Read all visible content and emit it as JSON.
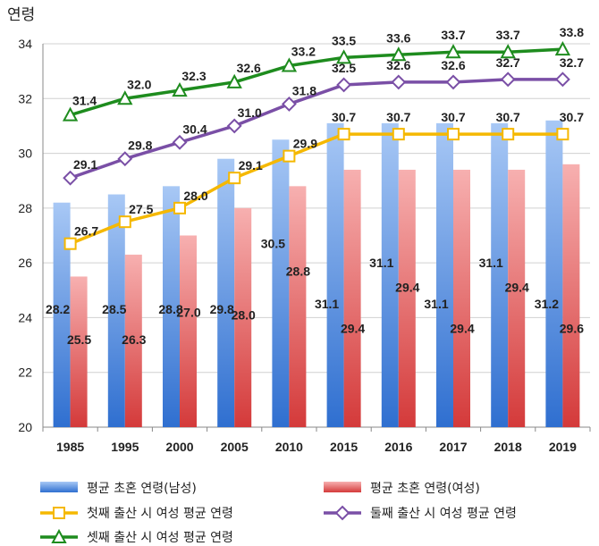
{
  "chart_data": {
    "type": "bar",
    "ylabel": "연령",
    "ylim": [
      20,
      34
    ],
    "yticks": [
      20,
      22,
      24,
      26,
      28,
      30,
      32,
      34
    ],
    "grid": true,
    "legend_position": "bottom",
    "categories": [
      "1985",
      "1995",
      "2000",
      "2005",
      "2010",
      "2015",
      "2016",
      "2017",
      "2018",
      "2019"
    ],
    "series": [
      {
        "name": "평균 초혼 연령(남성)",
        "kind": "bar",
        "color": "#5b8fe0",
        "values": [
          28.2,
          28.5,
          28.8,
          29.8,
          30.5,
          31.1,
          31.1,
          31.1,
          31.1,
          31.2
        ]
      },
      {
        "name": "평균 초혼 연령(여성)",
        "kind": "bar",
        "color": "#e05555",
        "values": [
          25.5,
          26.3,
          27.0,
          28.0,
          28.8,
          29.4,
          29.4,
          29.4,
          29.4,
          29.6
        ]
      },
      {
        "name": "첫째 출산 시 여성 평균 연령",
        "kind": "line",
        "marker": "square",
        "color": "#f5b800",
        "values": [
          26.7,
          27.5,
          28.0,
          29.1,
          29.9,
          30.7,
          30.7,
          30.7,
          30.7,
          30.7
        ]
      },
      {
        "name": "둘째 출산 시 여성 평균 연령",
        "kind": "line",
        "marker": "diamond",
        "color": "#7a4fa6",
        "values": [
          29.1,
          29.8,
          30.4,
          31.0,
          31.8,
          32.5,
          32.6,
          32.6,
          32.7,
          32.7
        ]
      },
      {
        "name": "셋째 출산 시 여성 평균 연령",
        "kind": "line",
        "marker": "triangle",
        "color": "#1e8c1e",
        "values": [
          31.4,
          32.0,
          32.3,
          32.6,
          33.2,
          33.5,
          33.6,
          33.7,
          33.7,
          33.8
        ]
      }
    ]
  }
}
